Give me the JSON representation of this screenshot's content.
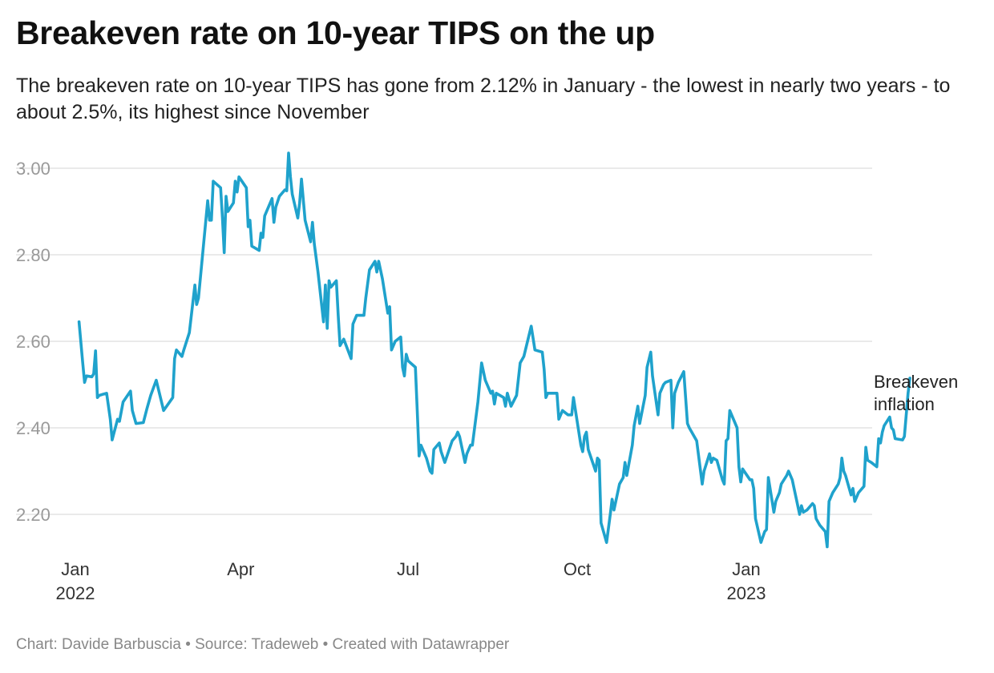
{
  "header": {
    "title": "Breakeven rate on 10-year TIPS on the up",
    "subtitle": "The breakeven rate on 10-year TIPS has gone from 2.12% in January - the lowest in nearly two years - to about 2.5%, its highest since November"
  },
  "footer": {
    "credit": "Chart: Davide Barbuscia • Source: Tradeweb • Created with Datawrapper"
  },
  "colors": {
    "line": "#1fa2cc",
    "grid": "#dddddd"
  },
  "chart_data": {
    "type": "line",
    "title": "Breakeven rate on 10-year TIPS on the up",
    "ylim": [
      2.12,
      3.04
    ],
    "y_ticks": [
      "3.00",
      "2.80",
      "2.60",
      "2.40",
      "2.20"
    ],
    "y_tick_values": [
      3.0,
      2.8,
      2.6,
      2.4,
      2.2
    ],
    "x_ticks": [
      {
        "date": "2022-01-01",
        "label": "Jan",
        "sublabel": "2022"
      },
      {
        "date": "2022-04-01",
        "label": "Apr",
        "sublabel": ""
      },
      {
        "date": "2022-07-01",
        "label": "Jul",
        "sublabel": ""
      },
      {
        "date": "2022-10-01",
        "label": "Oct",
        "sublabel": ""
      },
      {
        "date": "2023-01-01",
        "label": "Jan",
        "sublabel": "2023"
      }
    ],
    "grid": true,
    "series": [
      {
        "name": "Breakeven inflation",
        "label": "Breakeven\ninflation",
        "points": [
          [
            "2022-01-03",
            2.645
          ],
          [
            "2022-01-05",
            2.55
          ],
          [
            "2022-01-06",
            2.505
          ],
          [
            "2022-01-07",
            2.52
          ],
          [
            "2022-01-10",
            2.518
          ],
          [
            "2022-01-11",
            2.525
          ],
          [
            "2022-01-12",
            2.578
          ],
          [
            "2022-01-13",
            2.47
          ],
          [
            "2022-01-14",
            2.475
          ],
          [
            "2022-01-18",
            2.48
          ],
          [
            "2022-01-20",
            2.42
          ],
          [
            "2022-01-21",
            2.372
          ],
          [
            "2022-01-24",
            2.42
          ],
          [
            "2022-01-25",
            2.415
          ],
          [
            "2022-01-27",
            2.46
          ],
          [
            "2022-01-31",
            2.485
          ],
          [
            "2022-02-01",
            2.44
          ],
          [
            "2022-02-03",
            2.41
          ],
          [
            "2022-02-07",
            2.412
          ],
          [
            "2022-02-09",
            2.445
          ],
          [
            "2022-02-11",
            2.475
          ],
          [
            "2022-02-14",
            2.51
          ],
          [
            "2022-02-18",
            2.44
          ],
          [
            "2022-02-23",
            2.47
          ],
          [
            "2022-02-24",
            2.56
          ],
          [
            "2022-02-25",
            2.58
          ],
          [
            "2022-02-28",
            2.565
          ],
          [
            "2022-03-01",
            2.58
          ],
          [
            "2022-03-04",
            2.62
          ],
          [
            "2022-03-07",
            2.73
          ],
          [
            "2022-03-08",
            2.685
          ],
          [
            "2022-03-09",
            2.7
          ],
          [
            "2022-03-11",
            2.79
          ],
          [
            "2022-03-14",
            2.925
          ],
          [
            "2022-03-15",
            2.88
          ],
          [
            "2022-03-16",
            2.88
          ],
          [
            "2022-03-17",
            2.97
          ],
          [
            "2022-03-21",
            2.955
          ],
          [
            "2022-03-22",
            2.885
          ],
          [
            "2022-03-23",
            2.805
          ],
          [
            "2022-03-24",
            2.935
          ],
          [
            "2022-03-25",
            2.9
          ],
          [
            "2022-03-28",
            2.92
          ],
          [
            "2022-03-29",
            2.97
          ],
          [
            "2022-03-30",
            2.945
          ],
          [
            "2022-03-31",
            2.98
          ],
          [
            "2022-04-04",
            2.955
          ],
          [
            "2022-04-05",
            2.865
          ],
          [
            "2022-04-06",
            2.88
          ],
          [
            "2022-04-07",
            2.82
          ],
          [
            "2022-04-11",
            2.81
          ],
          [
            "2022-04-12",
            2.85
          ],
          [
            "2022-04-13",
            2.84
          ],
          [
            "2022-04-14",
            2.89
          ],
          [
            "2022-04-18",
            2.93
          ],
          [
            "2022-04-19",
            2.875
          ],
          [
            "2022-04-20",
            2.91
          ],
          [
            "2022-04-22",
            2.935
          ],
          [
            "2022-04-25",
            2.95
          ],
          [
            "2022-04-26",
            2.948
          ],
          [
            "2022-04-27",
            3.035
          ],
          [
            "2022-04-28",
            2.98
          ],
          [
            "2022-04-29",
            2.94
          ],
          [
            "2022-05-02",
            2.885
          ],
          [
            "2022-05-03",
            2.92
          ],
          [
            "2022-05-04",
            2.975
          ],
          [
            "2022-05-06",
            2.88
          ],
          [
            "2022-05-09",
            2.83
          ],
          [
            "2022-05-10",
            2.875
          ],
          [
            "2022-05-11",
            2.825
          ],
          [
            "2022-05-13",
            2.76
          ],
          [
            "2022-05-16",
            2.645
          ],
          [
            "2022-05-17",
            2.73
          ],
          [
            "2022-05-18",
            2.63
          ],
          [
            "2022-05-19",
            2.74
          ],
          [
            "2022-05-20",
            2.725
          ],
          [
            "2022-05-23",
            2.74
          ],
          [
            "2022-05-24",
            2.66
          ],
          [
            "2022-05-25",
            2.59
          ],
          [
            "2022-05-27",
            2.605
          ],
          [
            "2022-05-31",
            2.56
          ],
          [
            "2022-06-01",
            2.64
          ],
          [
            "2022-06-03",
            2.66
          ],
          [
            "2022-06-07",
            2.66
          ],
          [
            "2022-06-08",
            2.7
          ],
          [
            "2022-06-10",
            2.765
          ],
          [
            "2022-06-13",
            2.785
          ],
          [
            "2022-06-14",
            2.76
          ],
          [
            "2022-06-15",
            2.785
          ],
          [
            "2022-06-17",
            2.745
          ],
          [
            "2022-06-20",
            2.665
          ],
          [
            "2022-06-21",
            2.68
          ],
          [
            "2022-06-22",
            2.58
          ],
          [
            "2022-06-24",
            2.6
          ],
          [
            "2022-06-27",
            2.61
          ],
          [
            "2022-06-28",
            2.54
          ],
          [
            "2022-06-29",
            2.52
          ],
          [
            "2022-06-30",
            2.57
          ],
          [
            "2022-07-01",
            2.555
          ],
          [
            "2022-07-05",
            2.54
          ],
          [
            "2022-07-06",
            2.44
          ],
          [
            "2022-07-07",
            2.335
          ],
          [
            "2022-07-08",
            2.36
          ],
          [
            "2022-07-11",
            2.33
          ],
          [
            "2022-07-13",
            2.3
          ],
          [
            "2022-07-14",
            2.295
          ],
          [
            "2022-07-15",
            2.35
          ],
          [
            "2022-07-18",
            2.365
          ],
          [
            "2022-07-19",
            2.345
          ],
          [
            "2022-07-21",
            2.32
          ],
          [
            "2022-07-25",
            2.37
          ],
          [
            "2022-07-27",
            2.38
          ],
          [
            "2022-07-28",
            2.39
          ],
          [
            "2022-07-29",
            2.38
          ],
          [
            "2022-08-01",
            2.32
          ],
          [
            "2022-08-02",
            2.34
          ],
          [
            "2022-08-04",
            2.36
          ],
          [
            "2022-08-05",
            2.36
          ],
          [
            "2022-08-08",
            2.46
          ],
          [
            "2022-08-10",
            2.55
          ],
          [
            "2022-08-12",
            2.51
          ],
          [
            "2022-08-15",
            2.48
          ],
          [
            "2022-08-16",
            2.485
          ],
          [
            "2022-08-17",
            2.455
          ],
          [
            "2022-08-18",
            2.48
          ],
          [
            "2022-08-22",
            2.47
          ],
          [
            "2022-08-23",
            2.45
          ],
          [
            "2022-08-24",
            2.48
          ],
          [
            "2022-08-26",
            2.45
          ],
          [
            "2022-08-29",
            2.475
          ],
          [
            "2022-08-31",
            2.55
          ],
          [
            "2022-09-02",
            2.565
          ],
          [
            "2022-09-06",
            2.635
          ],
          [
            "2022-09-08",
            2.58
          ],
          [
            "2022-09-12",
            2.575
          ],
          [
            "2022-09-13",
            2.535
          ],
          [
            "2022-09-14",
            2.47
          ],
          [
            "2022-09-15",
            2.48
          ],
          [
            "2022-09-20",
            2.48
          ],
          [
            "2022-09-21",
            2.42
          ],
          [
            "2022-09-23",
            2.44
          ],
          [
            "2022-09-26",
            2.43
          ],
          [
            "2022-09-28",
            2.43
          ],
          [
            "2022-09-29",
            2.47
          ],
          [
            "2022-10-03",
            2.36
          ],
          [
            "2022-10-04",
            2.345
          ],
          [
            "2022-10-05",
            2.38
          ],
          [
            "2022-10-06",
            2.39
          ],
          [
            "2022-10-07",
            2.35
          ],
          [
            "2022-10-11",
            2.3
          ],
          [
            "2022-10-12",
            2.33
          ],
          [
            "2022-10-13",
            2.325
          ],
          [
            "2022-10-14",
            2.18
          ],
          [
            "2022-10-17",
            2.135
          ],
          [
            "2022-10-19",
            2.2
          ],
          [
            "2022-10-20",
            2.235
          ],
          [
            "2022-10-21",
            2.21
          ],
          [
            "2022-10-24",
            2.27
          ],
          [
            "2022-10-26",
            2.285
          ],
          [
            "2022-10-27",
            2.32
          ],
          [
            "2022-10-28",
            2.29
          ],
          [
            "2022-10-31",
            2.36
          ],
          [
            "2022-11-01",
            2.405
          ],
          [
            "2022-11-03",
            2.45
          ],
          [
            "2022-11-04",
            2.41
          ],
          [
            "2022-11-07",
            2.475
          ],
          [
            "2022-11-08",
            2.54
          ],
          [
            "2022-11-10",
            2.575
          ],
          [
            "2022-11-11",
            2.52
          ],
          [
            "2022-11-14",
            2.43
          ],
          [
            "2022-11-15",
            2.48
          ],
          [
            "2022-11-17",
            2.5
          ],
          [
            "2022-11-18",
            2.505
          ],
          [
            "2022-11-21",
            2.51
          ],
          [
            "2022-11-22",
            2.4
          ],
          [
            "2022-11-23",
            2.48
          ],
          [
            "2022-11-25",
            2.505
          ],
          [
            "2022-11-28",
            2.53
          ],
          [
            "2022-11-29",
            2.47
          ],
          [
            "2022-11-30",
            2.41
          ],
          [
            "2022-12-01",
            2.4
          ],
          [
            "2022-12-05",
            2.37
          ],
          [
            "2022-12-08",
            2.27
          ],
          [
            "2022-12-09",
            2.3
          ],
          [
            "2022-12-12",
            2.34
          ],
          [
            "2022-12-13",
            2.32
          ],
          [
            "2022-12-14",
            2.33
          ],
          [
            "2022-12-16",
            2.325
          ],
          [
            "2022-12-19",
            2.28
          ],
          [
            "2022-12-20",
            2.27
          ],
          [
            "2022-12-21",
            2.37
          ],
          [
            "2022-12-22",
            2.375
          ],
          [
            "2022-12-23",
            2.44
          ],
          [
            "2022-12-27",
            2.4
          ],
          [
            "2022-12-28",
            2.31
          ],
          [
            "2022-12-29",
            2.275
          ],
          [
            "2022-12-30",
            2.305
          ],
          [
            "2023-01-03",
            2.28
          ],
          [
            "2023-01-04",
            2.28
          ],
          [
            "2023-01-05",
            2.26
          ],
          [
            "2023-01-06",
            2.19
          ],
          [
            "2023-01-09",
            2.135
          ],
          [
            "2023-01-11",
            2.16
          ],
          [
            "2023-01-12",
            2.165
          ],
          [
            "2023-01-13",
            2.285
          ],
          [
            "2023-01-16",
            2.205
          ],
          [
            "2023-01-17",
            2.23
          ],
          [
            "2023-01-19",
            2.25
          ],
          [
            "2023-01-20",
            2.27
          ],
          [
            "2023-01-23",
            2.29
          ],
          [
            "2023-01-24",
            2.3
          ],
          [
            "2023-01-26",
            2.28
          ],
          [
            "2023-01-27",
            2.26
          ],
          [
            "2023-01-30",
            2.2
          ],
          [
            "2023-01-31",
            2.22
          ],
          [
            "2023-02-01",
            2.205
          ],
          [
            "2023-02-03",
            2.21
          ],
          [
            "2023-02-06",
            2.225
          ],
          [
            "2023-02-07",
            2.22
          ],
          [
            "2023-02-08",
            2.19
          ],
          [
            "2023-02-10",
            2.175
          ],
          [
            "2023-02-13",
            2.16
          ],
          [
            "2023-02-14",
            2.125
          ],
          [
            "2023-02-15",
            2.23
          ],
          [
            "2023-02-17",
            2.25
          ],
          [
            "2023-02-20",
            2.27
          ],
          [
            "2023-02-21",
            2.285
          ],
          [
            "2023-02-22",
            2.33
          ],
          [
            "2023-02-23",
            2.3
          ],
          [
            "2023-02-24",
            2.29
          ],
          [
            "2023-02-27",
            2.245
          ],
          [
            "2023-02-28",
            2.26
          ],
          [
            "2023-03-01",
            2.23
          ],
          [
            "2023-03-03",
            2.25
          ],
          [
            "2023-03-06",
            2.265
          ],
          [
            "2023-03-07",
            2.355
          ],
          [
            "2023-03-08",
            2.325
          ],
          [
            "2023-03-10",
            2.32
          ],
          [
            "2023-03-13",
            2.31
          ],
          [
            "2023-03-14",
            2.375
          ],
          [
            "2023-03-15",
            2.365
          ],
          [
            "2023-03-16",
            2.39
          ],
          [
            "2023-03-17",
            2.405
          ],
          [
            "2023-03-20",
            2.425
          ],
          [
            "2023-03-21",
            2.4
          ],
          [
            "2023-03-22",
            2.395
          ],
          [
            "2023-03-23",
            2.375
          ],
          [
            "2023-03-27",
            2.372
          ],
          [
            "2023-03-28",
            2.38
          ],
          [
            "2023-03-30",
            2.48
          ],
          [
            "2023-03-31",
            2.515
          ]
        ]
      }
    ]
  }
}
